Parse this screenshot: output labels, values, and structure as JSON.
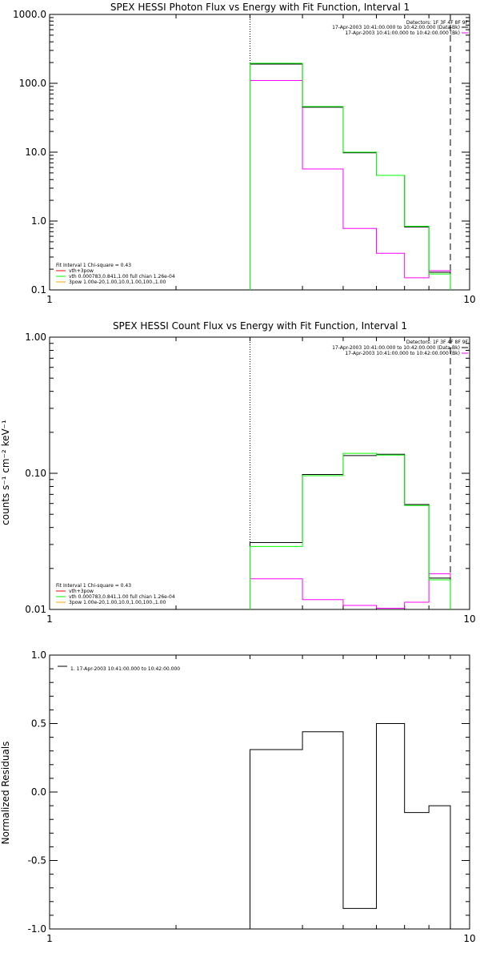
{
  "chart_data": [
    {
      "type": "line",
      "title": "SPEX HESSI Photon Flux vs Energy with Fit Function, Interval 1",
      "xlabel": "",
      "ylabel": "",
      "xscale": "log",
      "yscale": "log",
      "xlim": [
        1,
        10
      ],
      "ylim": [
        0.1,
        1000
      ],
      "x_ticks": [
        "1",
        "10"
      ],
      "y_ticks": [
        "0.1",
        "1.0",
        "10.0",
        "100.0",
        "1000.0"
      ],
      "y_tick_values": [
        0.1,
        1,
        10,
        100,
        1000
      ],
      "bin_edges": [
        3,
        4,
        5,
        6,
        7,
        8,
        9
      ],
      "dotted_line_x": 3,
      "dashed_line_x": 9,
      "detectors": "Detectors: 1F 3F 4F 8F 9F",
      "intervals": [
        {
          "label": "17-Apr-2003 10:41:00.000 to 10:42:00.000 (Data-Bk)",
          "color": "#000000"
        },
        {
          "label": "17-Apr-2003 10:41:00.000 to 10:42:00.000 (Bk)",
          "color": "#ff00ff"
        }
      ],
      "fit_info": "Fit Interval 1   Chi-square = 0.43",
      "legend": [
        {
          "name": "vth+3pow",
          "color": "#ff0000"
        },
        {
          "name": "vth 0.000783,0.841,1.00  full chian 1.26e-04",
          "color": "#00ff00"
        },
        {
          "name": "3pow 1.00e-20,1.00,10.0,1.00,100.,1.00",
          "color": "#ffa500"
        }
      ],
      "series": [
        {
          "name": "Data-Bk",
          "color": "#000000",
          "values": [
            190,
            45,
            9.8,
            4.6,
            0.82,
            0.18
          ]
        },
        {
          "name": "vth",
          "color": "#00ff00",
          "values": [
            195,
            46,
            10,
            4.6,
            0.84,
            0.17
          ]
        },
        {
          "name": "Bk",
          "color": "#ff00ff",
          "values": [
            110,
            5.7,
            0.78,
            0.34,
            0.15,
            0.19
          ]
        }
      ]
    },
    {
      "type": "line",
      "title": "SPEX HESSI Count Flux vs Energy with Fit Function, Interval 1",
      "xlabel": "",
      "ylabel": "counts s⁻¹ cm⁻² keV⁻¹",
      "xscale": "log",
      "yscale": "log",
      "xlim": [
        1,
        10
      ],
      "ylim": [
        0.01,
        1
      ],
      "x_ticks": [
        "1",
        "10"
      ],
      "y_ticks": [
        "0.01",
        "0.10",
        "1.00"
      ],
      "y_tick_values": [
        0.01,
        0.1,
        1
      ],
      "bin_edges": [
        3,
        4,
        5,
        6,
        7,
        8,
        9
      ],
      "dotted_line_x": 3,
      "dashed_line_x": 9,
      "detectors": "Detectors: 1F 3F 4F 8F 9F",
      "intervals": [
        {
          "label": "17-Apr-2003 10:41:00.000 to 10:42:00.000 (Data-Bk)",
          "color": "#000000"
        },
        {
          "label": "17-Apr-2003 10:41:00.000 to 10:42:00.000 (Bk)",
          "color": "#ff00ff"
        }
      ],
      "fit_info": "Fit Interval 1   Chi-square = 0.43",
      "legend": [
        {
          "name": "vth+3pow",
          "color": "#ff0000"
        },
        {
          "name": "vth 0.000783,0.841,1.00  full chian 1.26e-04",
          "color": "#00ff00"
        },
        {
          "name": "3pow 1.00e-20,1.00,10.0,1.00,100.,1.00",
          "color": "#ffa500"
        }
      ],
      "series": [
        {
          "name": "Data-Bk",
          "color": "#000000",
          "values": [
            0.031,
            0.098,
            0.135,
            0.138,
            0.059,
            0.017
          ]
        },
        {
          "name": "vth",
          "color": "#00ff00",
          "values": [
            0.029,
            0.096,
            0.14,
            0.136,
            0.058,
            0.0165
          ]
        },
        {
          "name": "Bk",
          "color": "#ff00ff",
          "values": [
            0.0168,
            0.0118,
            0.0107,
            0.0102,
            0.0113,
            0.0183
          ]
        }
      ]
    },
    {
      "type": "line",
      "title": "",
      "xlabel": "",
      "ylabel": "Normalized Residuals",
      "xscale": "log",
      "yscale": "linear",
      "xlim": [
        1,
        10
      ],
      "ylim": [
        -1,
        1
      ],
      "x_ticks": [
        "1",
        "10"
      ],
      "y_ticks": [
        "-1.0",
        "-0.5",
        "0.0",
        "0.5",
        "1.0"
      ],
      "y_tick_values": [
        -1,
        -0.5,
        0,
        0.5,
        1
      ],
      "bin_edges": [
        3,
        4,
        5,
        6,
        7,
        8,
        9
      ],
      "legend": [
        {
          "name": "1. 17-Apr-2003 10:41:00.000 to 10:42:00.000",
          "color": "#000000"
        }
      ],
      "series": [
        {
          "name": "residuals",
          "color": "#000000",
          "values": [
            0.31,
            0.44,
            -0.85,
            0.5,
            -0.15,
            -0.1
          ]
        }
      ]
    }
  ]
}
